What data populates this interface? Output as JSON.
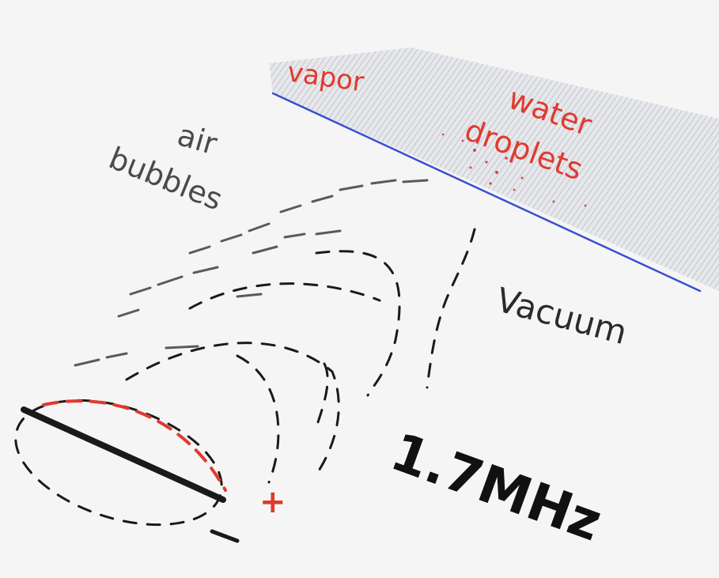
{
  "labels": {
    "vapor": "vapor",
    "water_droplets_line1": "water",
    "water_droplets_line2": "droplets",
    "air_bubbles_line1": "air",
    "air_bubbles_line2": "bubbles",
    "vacuum": "Vacuum",
    "frequency": "1.7MHz",
    "plus": "+",
    "minus": "–"
  },
  "colors": {
    "ink_black": "#1a1a1a",
    "ink_gray": "#4a4a4a",
    "ink_red": "#e03a2f",
    "surface_blue": "#3a4fd0",
    "shading": "#c9ccd2",
    "paper": "#f5f5f5"
  }
}
